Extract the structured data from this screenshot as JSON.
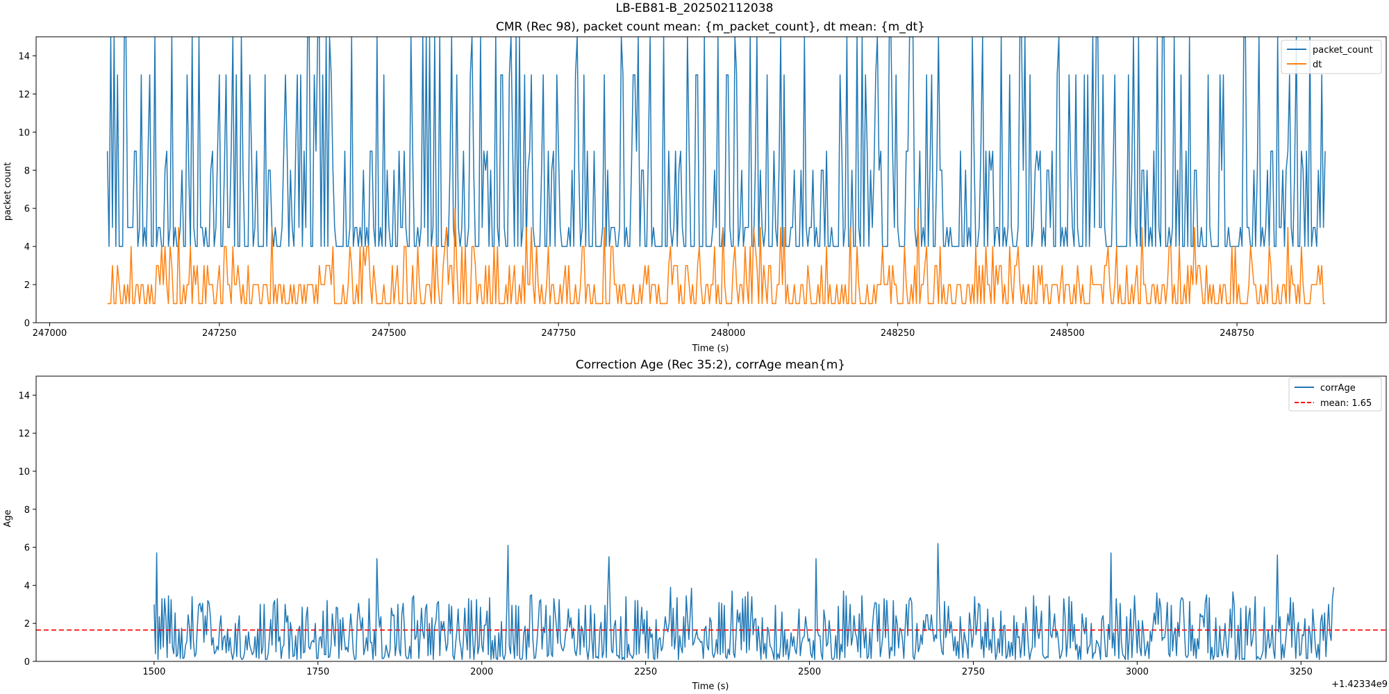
{
  "figure": {
    "suptitle": "LB-EB81-B_202502112038"
  },
  "chart_data": [
    {
      "type": "line",
      "title": "CMR (Rec 98), packet count mean: {m_packet_count}, dt mean: {m_dt}",
      "xlabel": "Time (s)",
      "ylabel": "packet count",
      "xlim": [
        246980,
        248970
      ],
      "ylim": [
        0,
        15
      ],
      "xticks": [
        247000,
        247250,
        247500,
        247750,
        248000,
        248250,
        248500,
        248750
      ],
      "xtick_labels": [
        "247000",
        "247250",
        "247500",
        "247750",
        "248000",
        "248250",
        "248500",
        "248750"
      ],
      "yticks": [
        0,
        2,
        4,
        6,
        8,
        10,
        12,
        14
      ],
      "ytick_labels": [
        "0",
        "2",
        "4",
        "6",
        "8",
        "10",
        "12",
        "14"
      ],
      "legend_position": "top-right",
      "series": [
        {
          "name": "packet_count",
          "color": "#1f77b4",
          "x_start": 247085,
          "x_end": 248880,
          "levels": [
            4,
            5,
            8,
            9,
            13,
            15
          ],
          "level_weights": [
            0.42,
            0.2,
            0.1,
            0.1,
            0.08,
            0.1
          ],
          "start_value": 9,
          "end_value": 9,
          "seed": 7,
          "note": "dense series approximated from visual appearance"
        },
        {
          "name": "dt",
          "color": "#ff7f0e",
          "x_start": 247085,
          "x_end": 248880,
          "levels": [
            1,
            2,
            3,
            4,
            5
          ],
          "level_weights": [
            0.45,
            0.3,
            0.12,
            0.1,
            0.03
          ],
          "peaks": [
            [
              247597,
              6
            ],
            [
              248280,
              6
            ]
          ],
          "start_value": 1,
          "end_value": 1,
          "seed": 19,
          "note": "dense series approximated from visual appearance"
        }
      ],
      "legend": [
        "packet_count",
        "dt"
      ]
    },
    {
      "type": "line",
      "title": "Correction Age (Rec 35:2), corrAge mean{m}",
      "xlabel": "Time (s)",
      "ylabel": "Age",
      "x_offset_label": "+1.42334e9",
      "xlim": [
        1320,
        3380
      ],
      "ylim": [
        0,
        15
      ],
      "xticks": [
        1500,
        1750,
        2000,
        2250,
        2500,
        2750,
        3000,
        3250
      ],
      "xtick_labels": [
        "1500",
        "1750",
        "2000",
        "2250",
        "2500",
        "2750",
        "3000",
        "3250"
      ],
      "yticks": [
        0,
        2,
        4,
        6,
        8,
        10,
        12,
        14
      ],
      "ytick_labels": [
        "0",
        "2",
        "4",
        "6",
        "8",
        "10",
        "12",
        "14"
      ],
      "legend_position": "top-right",
      "series": [
        {
          "name": "corrAge",
          "color": "#1f77b4",
          "x_start": 1500,
          "x_end": 3300,
          "typical_range": [
            0.1,
            3.5
          ],
          "peaks": [
            [
              1505,
              5.7
            ],
            [
              1840,
              5.4
            ],
            [
              2040,
              6.1
            ],
            [
              2195,
              5.5
            ],
            [
              2697,
              6.2
            ],
            [
              2510,
              5.4
            ],
            [
              2960,
              5.7
            ],
            [
              3215,
              5.6
            ]
          ],
          "start_value": 3.0,
          "end_value": 3.9,
          "seed": 31,
          "note": "dense series approximated from visual appearance"
        }
      ],
      "mean_line": {
        "name": "mean: 1.65",
        "value": 1.65,
        "color": "#ff0000",
        "style": "dashed"
      },
      "legend": [
        "corrAge",
        "mean: 1.65"
      ]
    }
  ]
}
